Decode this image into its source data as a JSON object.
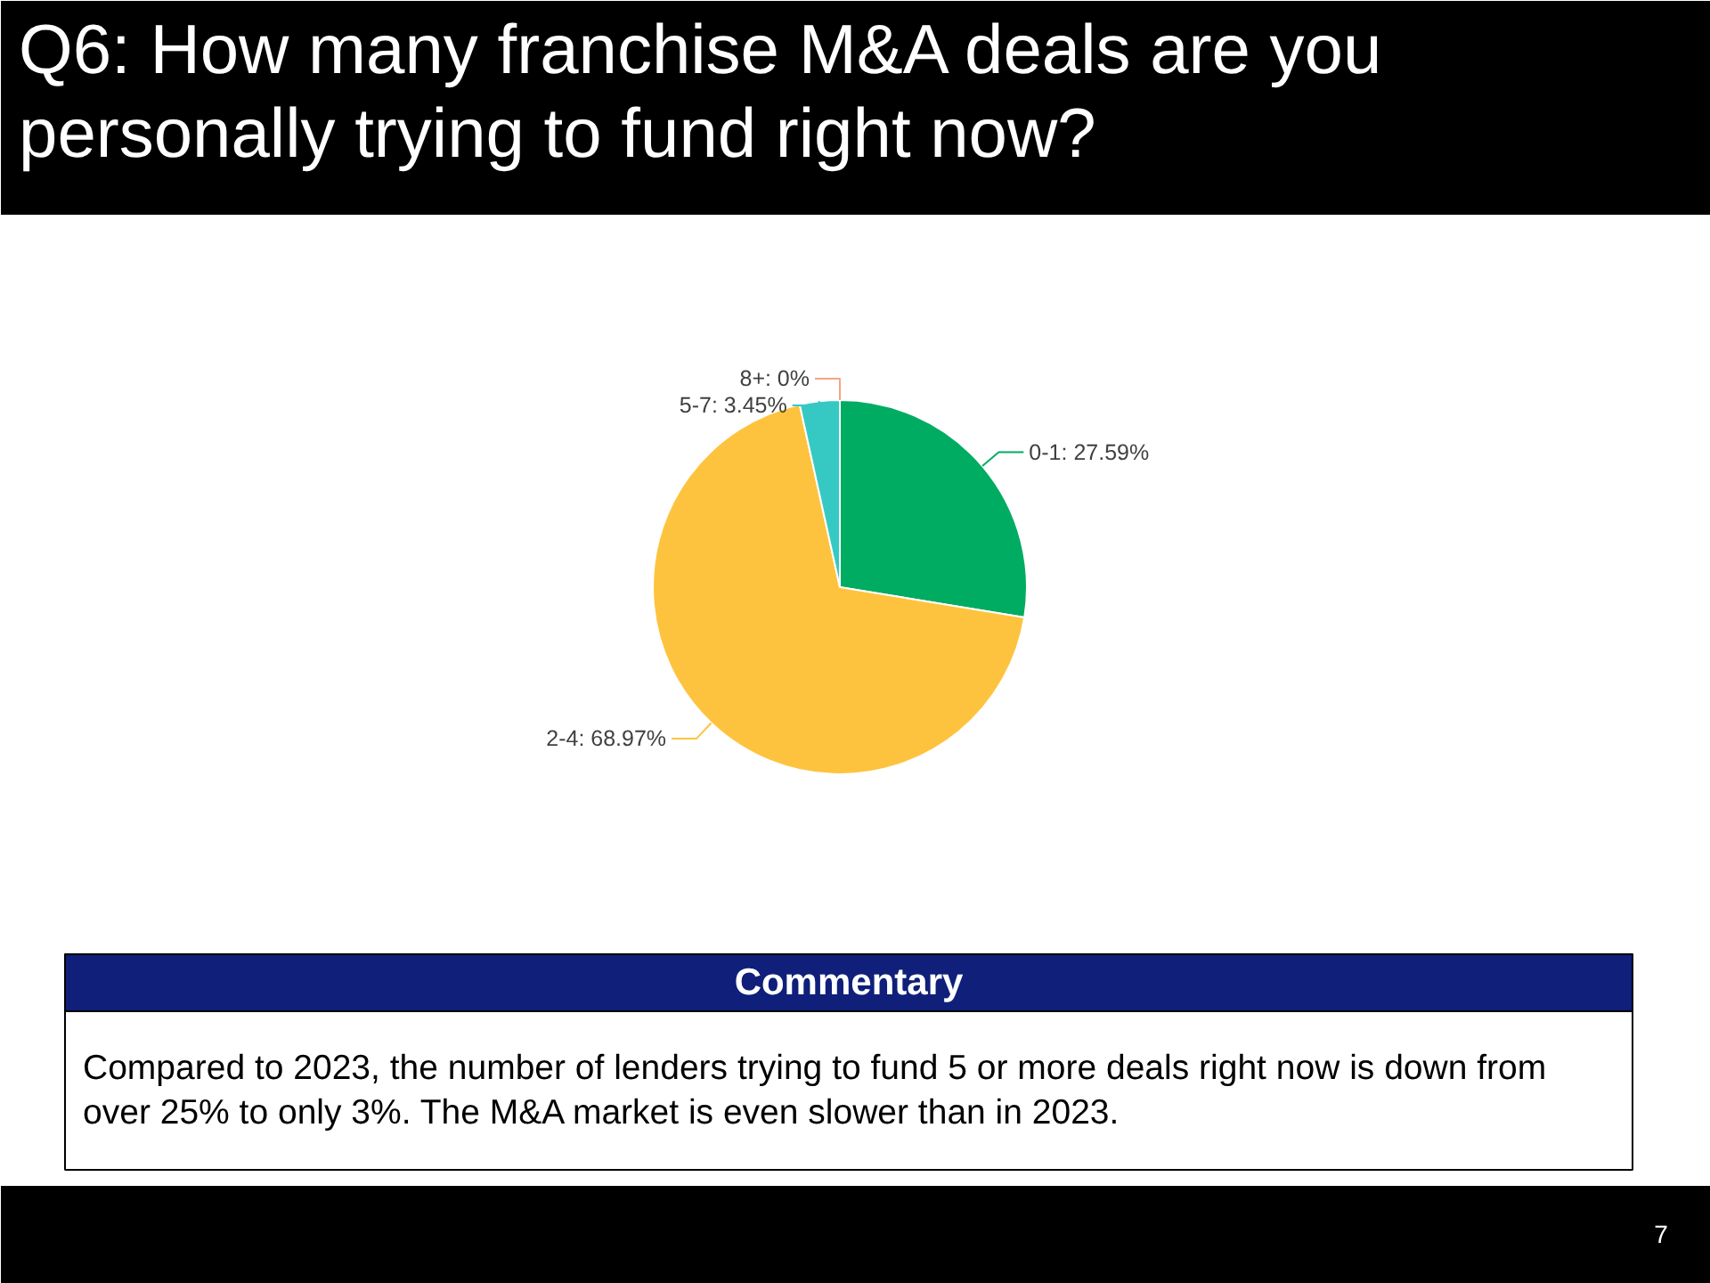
{
  "chart_data": {
    "type": "pie",
    "title": "Q6: How many franchise M&A deals are you personally trying to fund right now?",
    "categories": [
      "0-1",
      "2-4",
      "5-7",
      "8+"
    ],
    "values": [
      27.59,
      68.97,
      3.45,
      0
    ],
    "colors": [
      "#00ac61",
      "#fec33e",
      "#36c9c4",
      "#f4a582"
    ],
    "value_labels": [
      "27.59%",
      "68.97%",
      "3.45%",
      "0%"
    ],
    "annotations": [
      "Commentary",
      "Compared to 2023, the number of lenders trying to fund 5 or more deals right now is down from over 25% to only 3%. The M&A market is even slower than in 2023.",
      "7"
    ]
  }
}
